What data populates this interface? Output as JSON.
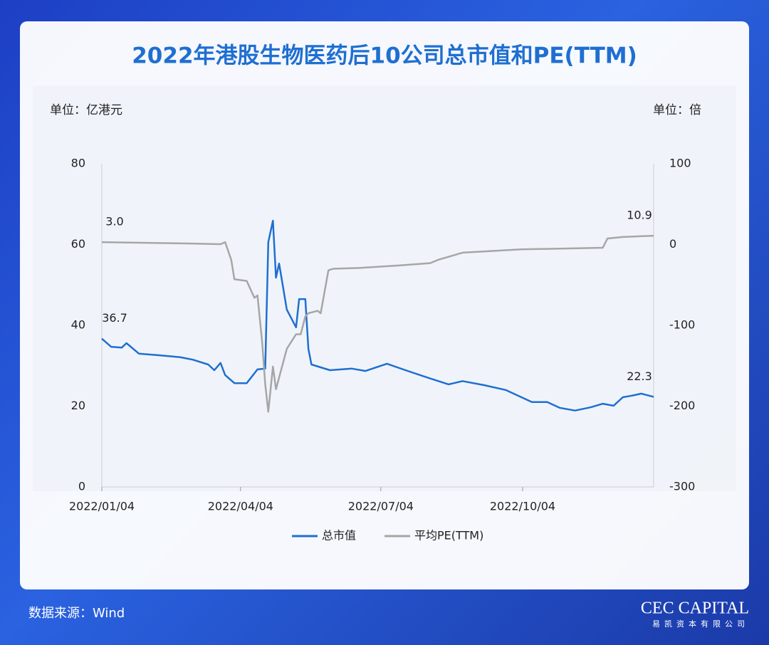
{
  "chart_data": {
    "type": "line",
    "title": "2022年港股生物医药后10公司总市值和PE(TTM)",
    "y_label": "单位：亿港元",
    "y2_label": "单位：倍",
    "source": "数据来源：Wind",
    "logo": "CEC CAPITAL",
    "logo_sub": "易凯资本有限公司",
    "xlim": [
      "2022/01/04",
      "2022/12/28"
    ],
    "xticks": [
      "2022/01/04",
      "2022/04/04",
      "2022/07/04",
      "2022/10/04"
    ],
    "ylim": [
      0,
      80
    ],
    "yticks": [
      0,
      20,
      40,
      60,
      80
    ],
    "y2lim": [
      -300,
      100
    ],
    "y2ticks": [
      -300,
      -200,
      -100,
      0,
      100
    ],
    "series": [
      {
        "name": "总市值",
        "color": "#1f6fd1",
        "x": [
          "2022/01/04",
          "2022/01/10",
          "2022/01/17",
          "2022/01/20",
          "2022/01/28",
          "2022/02/10",
          "2022/02/24",
          "2022/03/04",
          "2022/03/14",
          "2022/03/18",
          "2022/03/22",
          "2022/03/25",
          "2022/03/31",
          "2022/04/08",
          "2022/04/15",
          "2022/04/20",
          "2022/04/22",
          "2022/04/25",
          "2022/04/27",
          "2022/04/29",
          "2022/05/04",
          "2022/05/10",
          "2022/05/12",
          "2022/05/16",
          "2022/05/18",
          "2022/05/20",
          "2022/06/01",
          "2022/06/15",
          "2022/06/24",
          "2022/07/08",
          "2022/07/20",
          "2022/08/03",
          "2022/08/17",
          "2022/08/26",
          "2022/09/09",
          "2022/09/23",
          "2022/10/10",
          "2022/10/20",
          "2022/10/28",
          "2022/11/07",
          "2022/11/17",
          "2022/11/25",
          "2022/12/02",
          "2022/12/08",
          "2022/12/14",
          "2022/12/20",
          "2022/12/28"
        ],
        "values": [
          36.7,
          34.7,
          34.5,
          35.6,
          33.0,
          32.6,
          32.1,
          31.5,
          30.3,
          28.9,
          30.7,
          27.7,
          25.7,
          25.7,
          29.1,
          29.3,
          60.6,
          65.9,
          51.8,
          55.3,
          43.9,
          39.5,
          46.5,
          46.5,
          34.2,
          30.3,
          28.9,
          29.3,
          28.7,
          30.5,
          28.9,
          27.1,
          25.4,
          26.2,
          25.2,
          24.0,
          21.0,
          21.0,
          19.6,
          18.9,
          19.7,
          20.6,
          20.1,
          22.2,
          22.6,
          23.1,
          22.3
        ],
        "value_labels": [
          "36.7",
          null,
          null,
          null,
          null,
          null,
          null,
          null,
          null,
          null,
          null,
          null,
          null,
          null,
          null,
          null,
          null,
          null,
          null,
          null,
          null,
          null,
          null,
          null,
          null,
          null,
          null,
          null,
          null,
          null,
          null,
          null,
          null,
          null,
          null,
          null,
          null,
          null,
          null,
          null,
          null,
          null,
          null,
          null,
          null,
          null,
          "22.3"
        ]
      },
      {
        "name": "平均PE(TTM)",
        "color": "#a6a6a6",
        "axis": "y2",
        "x": [
          "2022/01/04",
          "2022/03/01",
          "2022/03/22",
          "2022/03/25",
          "2022/03/29",
          "2022/03/31",
          "2022/04/08",
          "2022/04/13",
          "2022/04/15",
          "2022/04/18",
          "2022/04/20",
          "2022/04/22",
          "2022/04/25",
          "2022/04/27",
          "2022/05/04",
          "2022/05/10",
          "2022/05/13",
          "2022/05/16",
          "2022/05/18",
          "2022/05/24",
          "2022/05/26",
          "2022/05/31",
          "2022/06/03",
          "2022/06/20",
          "2022/07/15",
          "2022/08/05",
          "2022/08/10",
          "2022/08/26",
          "2022/10/03",
          "2022/11/25",
          "2022/11/28",
          "2022/12/08",
          "2022/12/28"
        ],
        "values": [
          3.0,
          1.3,
          0.4,
          3,
          -19,
          -43,
          -45,
          -66,
          -63,
          -120,
          -173,
          -207,
          -151,
          -179,
          -129,
          -111,
          -111,
          -89,
          -85,
          -82,
          -85,
          -32,
          -30,
          -29,
          -26,
          -23,
          -19,
          -10,
          -6,
          -4,
          7.5,
          9.3,
          10.9
        ],
        "value_labels": [
          "3.0",
          null,
          null,
          null,
          null,
          null,
          null,
          null,
          null,
          null,
          null,
          null,
          null,
          null,
          null,
          null,
          null,
          null,
          null,
          null,
          null,
          null,
          null,
          null,
          null,
          null,
          null,
          null,
          null,
          null,
          null,
          null,
          "10.9"
        ]
      }
    ]
  }
}
